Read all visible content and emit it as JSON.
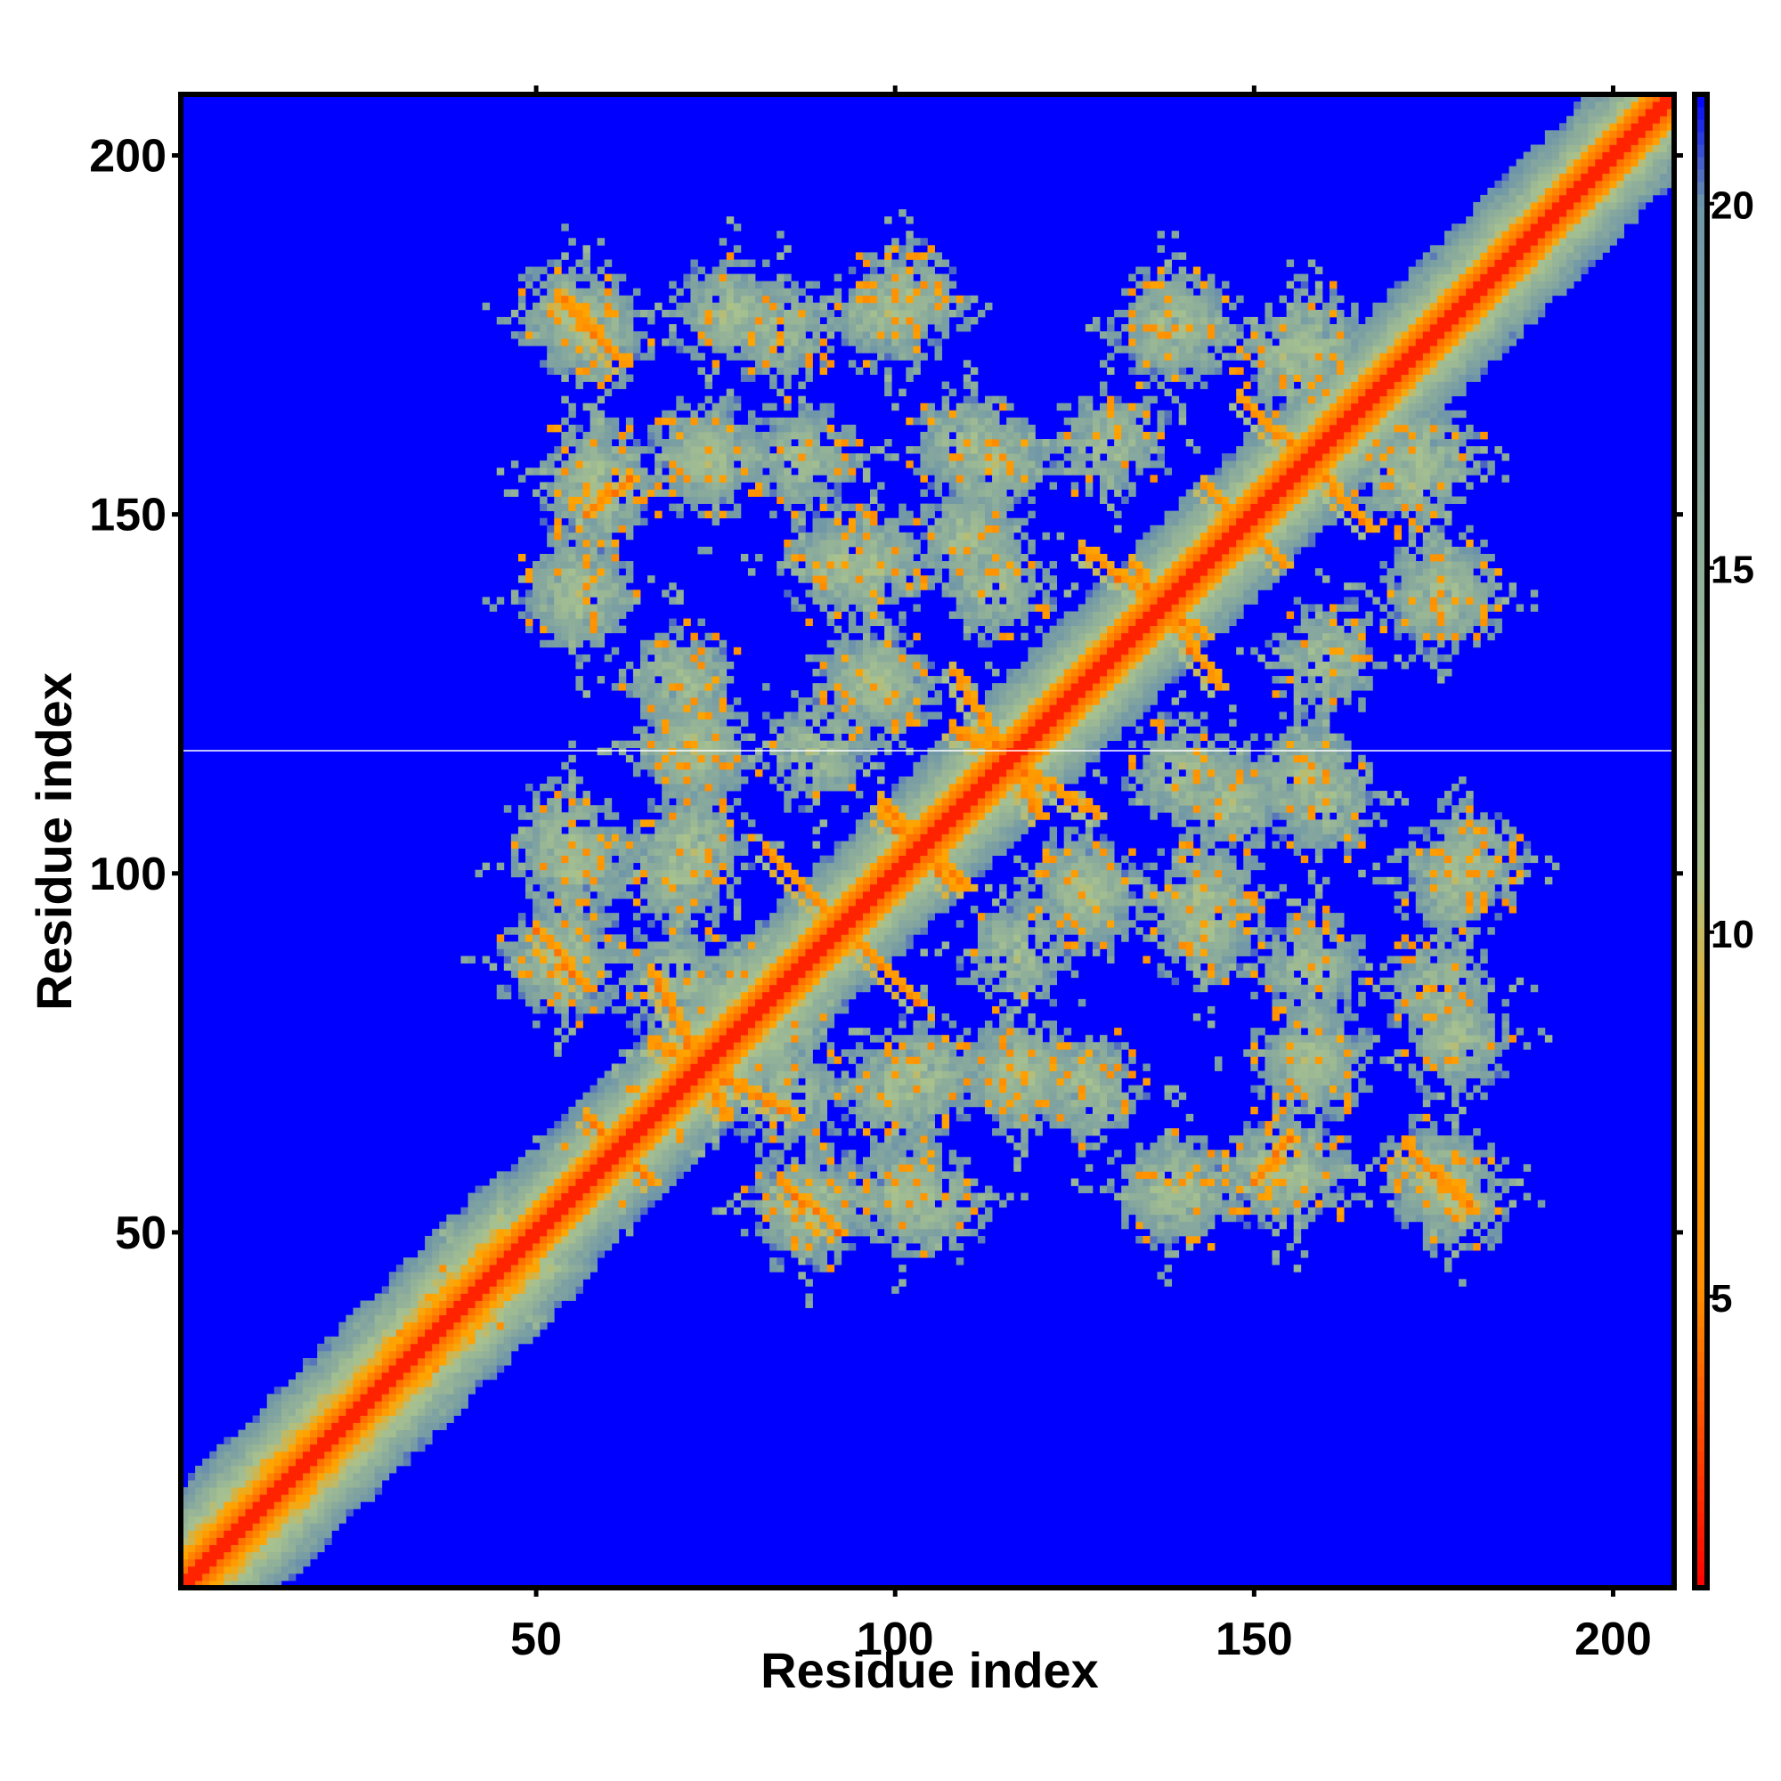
{
  "chart_data": {
    "type": "heatmap",
    "title": "",
    "xlabel": "Residue index",
    "ylabel": "Residue index",
    "xlim": [
      1,
      208
    ],
    "ylim": [
      1,
      208
    ],
    "x_ticks": [
      50,
      100,
      150,
      200
    ],
    "y_ticks": [
      50,
      100,
      150,
      200
    ],
    "x_tick_labels": [
      "50",
      "100",
      "150",
      "200"
    ],
    "y_tick_labels": [
      "50",
      "100",
      "150",
      "200"
    ],
    "colorbar": {
      "range": [
        1,
        21.5
      ],
      "ticks": [
        5,
        10,
        15,
        20
      ],
      "tick_labels": [
        "5",
        "10",
        "15",
        "20"
      ],
      "colors": [
        "#ff0000",
        "#ff8c00",
        "#ffa500",
        "#a8c28f",
        "#6f96a8",
        "#0000ff"
      ],
      "stops": [
        1,
        5,
        8,
        11,
        20,
        21.5
      ]
    },
    "background_color": "#0000ff",
    "diagonal_color": "#ff0000",
    "grid": false,
    "legend": "colorbar-right",
    "contact_blocks": [
      {
        "x": 55,
        "y": 178
      },
      {
        "x": 77,
        "y": 178
      },
      {
        "x": 99,
        "y": 178
      },
      {
        "x": 140,
        "y": 176
      },
      {
        "x": 158,
        "y": 174
      },
      {
        "x": 58,
        "y": 156
      },
      {
        "x": 74,
        "y": 158
      },
      {
        "x": 110,
        "y": 160
      },
      {
        "x": 172,
        "y": 155
      },
      {
        "x": 56,
        "y": 140
      },
      {
        "x": 92,
        "y": 143
      },
      {
        "x": 110,
        "y": 147
      },
      {
        "x": 176,
        "y": 138
      },
      {
        "x": 70,
        "y": 127
      },
      {
        "x": 97,
        "y": 127
      },
      {
        "x": 160,
        "y": 130
      },
      {
        "x": 72,
        "y": 118
      },
      {
        "x": 140,
        "y": 114
      },
      {
        "x": 157,
        "y": 114
      },
      {
        "x": 54,
        "y": 105
      },
      {
        "x": 72,
        "y": 104
      },
      {
        "x": 126,
        "y": 98
      },
      {
        "x": 143,
        "y": 97
      },
      {
        "x": 180,
        "y": 102
      },
      {
        "x": 53,
        "y": 87
      },
      {
        "x": 78,
        "y": 83
      },
      {
        "x": 117,
        "y": 89
      },
      {
        "x": 158,
        "y": 87
      },
      {
        "x": 176,
        "y": 84
      },
      {
        "x": 100,
        "y": 70
      },
      {
        "x": 117,
        "y": 72
      },
      {
        "x": 158,
        "y": 74
      },
      {
        "x": 85,
        "y": 69
      },
      {
        "x": 62,
        "y": 62
      },
      {
        "x": 89,
        "y": 54
      },
      {
        "x": 101,
        "y": 55
      },
      {
        "x": 138,
        "y": 56
      },
      {
        "x": 153,
        "y": 59
      },
      {
        "x": 175,
        "y": 58
      },
      {
        "x": 38,
        "y": 38
      }
    ],
    "antidiagonal_strands": [
      {
        "from": [
          54,
          180
        ],
        "to": [
          62,
          171
        ]
      },
      {
        "from": [
          63,
          155
        ],
        "to": [
          57,
          150
        ]
      },
      {
        "from": [
          133,
          143
        ],
        "to": [
          145,
          126
        ]
      },
      {
        "from": [
          147,
          150
        ],
        "to": [
          154,
          143
        ]
      },
      {
        "from": [
          155,
          160
        ],
        "to": [
          166,
          148
        ]
      },
      {
        "from": [
          108,
          128
        ],
        "to": [
          120,
          108
        ]
      },
      {
        "from": [
          82,
          103
        ],
        "to": [
          103,
          82
        ]
      },
      {
        "from": [
          98,
          110
        ],
        "to": [
          108,
          98
        ]
      },
      {
        "from": [
          66,
          86
        ],
        "to": [
          76,
          66
        ]
      },
      {
        "from": [
          57,
          66
        ],
        "to": [
          66,
          57
        ]
      },
      {
        "from": [
          84,
          57
        ],
        "to": [
          92,
          50
        ]
      },
      {
        "from": [
          171,
          62
        ],
        "to": [
          180,
          53
        ]
      }
    ]
  }
}
